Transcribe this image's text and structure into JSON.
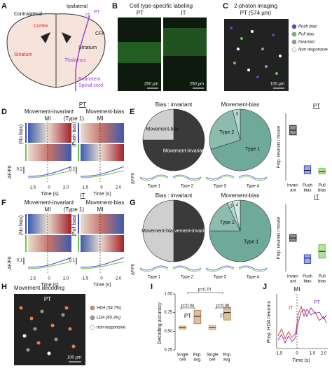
{
  "a": {
    "letter": "A",
    "contralateral": "Contralateral",
    "ipsilateral": "Ipsilateral",
    "cortex": "Cortex",
    "it": "IT",
    "pt": "PT",
    "cfa": "CFA",
    "striatum_left": "Striatum",
    "striatum_right": "Striatum",
    "thalamus": "Thalamus",
    "brainstem": "Brainstem",
    "spinal_cord": "Spinal cord"
  },
  "b": {
    "letter": "B",
    "title": "Cell type-specific labeling",
    "pt": "PT",
    "it": "IT",
    "scale_left": "250 µm",
    "scale_right": "250 µm"
  },
  "c": {
    "letter": "C",
    "title": "2-photon imaging",
    "subtitle": "PT (574 µm)",
    "legend": [
      {
        "label": "Push bias",
        "color": "#3b4fd0"
      },
      {
        "label": "Pull bias",
        "color": "#6cc24a"
      },
      {
        "label": "Invariant",
        "color": "#999999"
      },
      {
        "label": "Non responsive",
        "color": "#ffffff"
      }
    ],
    "scale": "100 µm"
  },
  "d": {
    "letter": "D",
    "group": "PT",
    "left_title": "Movement-invariant",
    "right_title": "Movement-bias",
    "right_sub": "(Type 1)",
    "mi_left": "MI",
    "mi_right": "MI",
    "left_bias": "(No bias)",
    "right_bias": "(Push bias)",
    "ylabel": "ΔF/F0",
    "scale_left": "0.2",
    "scale_right": "0.2",
    "xticks_left": [
      "-1.5",
      "0",
      "2.0"
    ],
    "xticks_right": [
      "-1.5",
      "0",
      "2.0"
    ],
    "xlabel_left": "Time (s)",
    "xlabel_right": "Time (s)"
  },
  "e": {
    "letter": "E",
    "pie_bias": {
      "title": "Bias : invariant",
      "labels": [
        "Movement-invariant",
        "Movement-bias"
      ],
      "values": [
        75,
        25
      ],
      "colors": [
        "#3a3a3a",
        "#cfcfcf"
      ]
    },
    "pie_types": {
      "title": "Movement-bias",
      "labels": [
        "Type 1",
        "Type 2",
        "3"
      ],
      "values": [
        70,
        26,
        4
      ],
      "colors": [
        "#6fa99a",
        "#8cbcae",
        "#b7d8cf"
      ]
    },
    "strip_label": "ΔF/F0",
    "types": [
      "Type 1",
      "Type 2",
      "Type 3",
      "Type 4"
    ],
    "box": {
      "title": "PT",
      "ylabel": "Prop. neurons / mouse",
      "ylim": [
        0,
        1
      ],
      "categories": [
        [
          "Invari-",
          "ant"
        ],
        [
          "Push",
          "bias"
        ],
        [
          "Pull",
          "bias"
        ]
      ],
      "boxes": [
        {
          "q1": 0.68,
          "median": 0.75,
          "q3": 0.82,
          "color": "#222222"
        },
        {
          "q1": 0.1,
          "median": 0.15,
          "q3": 0.22,
          "color": "#3b4fd0"
        },
        {
          "q1": 0.1,
          "median": 0.13,
          "q3": 0.18,
          "color": "#6cc24a"
        }
      ]
    }
  },
  "f": {
    "letter": "F",
    "group": "IT",
    "left_title": "Movement-invariant",
    "right_title": "Movement-bias",
    "right_sub": "(Type 1)",
    "mi_left": "MI",
    "mi_right": "MI",
    "left_bias": "(No bias)",
    "right_bias": "(Pull bias)",
    "ylabel": "ΔF/F0",
    "scale_left": "0.1",
    "scale_right": "0.1",
    "xticks_left": [
      "-1.5",
      "0",
      "2.0"
    ],
    "xticks_right": [
      "-1.5",
      "0",
      "2.0"
    ],
    "xlabel_left": "Time (s)",
    "xlabel_right": "Time (s)"
  },
  "g": {
    "letter": "G",
    "pie_bias": {
      "title": "Bias : invariant",
      "labels": [
        "Movement-invariant",
        "Movement-bias"
      ],
      "values": [
        50,
        50
      ],
      "colors": [
        "#3a3a3a",
        "#cfcfcf"
      ]
    },
    "pie_types": {
      "title": "Movement-bias",
      "labels": [
        "Type 1",
        "Type 2",
        "3",
        "4"
      ],
      "values": [
        75,
        18,
        3,
        4
      ],
      "colors": [
        "#6fa99a",
        "#8cbcae",
        "#b7d8cf",
        "#d6ebe5"
      ]
    },
    "strip_label": "ΔF/F0",
    "types": [
      "Type 1",
      "Type 2",
      "Type 3",
      "Type 4"
    ],
    "box": {
      "title": "IT",
      "ylabel": "Prop. neurons / mouse",
      "ylim": [
        0,
        1
      ],
      "categories": [
        [
          "Invari-",
          "ant"
        ],
        [
          "Push",
          "bias"
        ],
        [
          "Pull",
          "bias"
        ]
      ],
      "boxes": [
        {
          "q1": 0.45,
          "median": 0.5,
          "q3": 0.55,
          "color": "#222222"
        },
        {
          "q1": 0.12,
          "median": 0.2,
          "q3": 0.25,
          "color": "#3b4fd0"
        },
        {
          "q1": 0.2,
          "median": 0.3,
          "q3": 0.4,
          "color": "#6cc24a"
        }
      ]
    }
  },
  "h": {
    "letter": "H",
    "title": "Movement decoding",
    "image_label": "PT",
    "legend": [
      {
        "label": "HDA (34.7%)",
        "color": "#e8823a"
      },
      {
        "label": "LDA (65.3%)",
        "color": "#999999"
      },
      {
        "label": "non-responsive",
        "color": "#ffffff"
      }
    ],
    "scale": "100 µm"
  },
  "i": {
    "letter": "I",
    "ylabel": "Decoding accuracy",
    "p_pt": "p=0.04",
    "p_between": "p=0.70",
    "p_it": "p=0.06",
    "group_pt": "PT",
    "group_it": "IT",
    "ylim": [
      0.25,
      1.0
    ],
    "yticks": [
      {
        "value": 0.25,
        "label": "0.25"
      },
      {
        "value": 0.5,
        "label": "0.50"
      },
      {
        "value": 0.75,
        "label": "0.75"
      },
      {
        "value": 1.0,
        "label": "1.00"
      }
    ],
    "categories": [
      [
        "Single",
        "cell"
      ],
      [
        "Pop.",
        "avg."
      ],
      [
        "Single",
        "cell"
      ],
      [
        "Pop.",
        "avg."
      ]
    ],
    "boxes": [
      {
        "q1": 0.53,
        "median": 0.55,
        "q3": 0.57,
        "color": "#d9a066"
      },
      {
        "q1": 0.6,
        "median": 0.7,
        "q3": 0.78,
        "color": "#b5854a"
      },
      {
        "q1": 0.52,
        "median": 0.55,
        "q3": 0.58,
        "color": "#d9a066"
      },
      {
        "q1": 0.65,
        "median": 0.75,
        "q3": 0.82,
        "color": "#b5854a"
      }
    ]
  },
  "j": {
    "letter": "J",
    "ylabel": "Prop. HDA neurons",
    "mi": "MI",
    "it": "IT",
    "pt": "PT",
    "xticks": [
      "-1.5",
      "0",
      "1.0",
      "2.0"
    ],
    "xlabel": "Time (s)"
  }
}
